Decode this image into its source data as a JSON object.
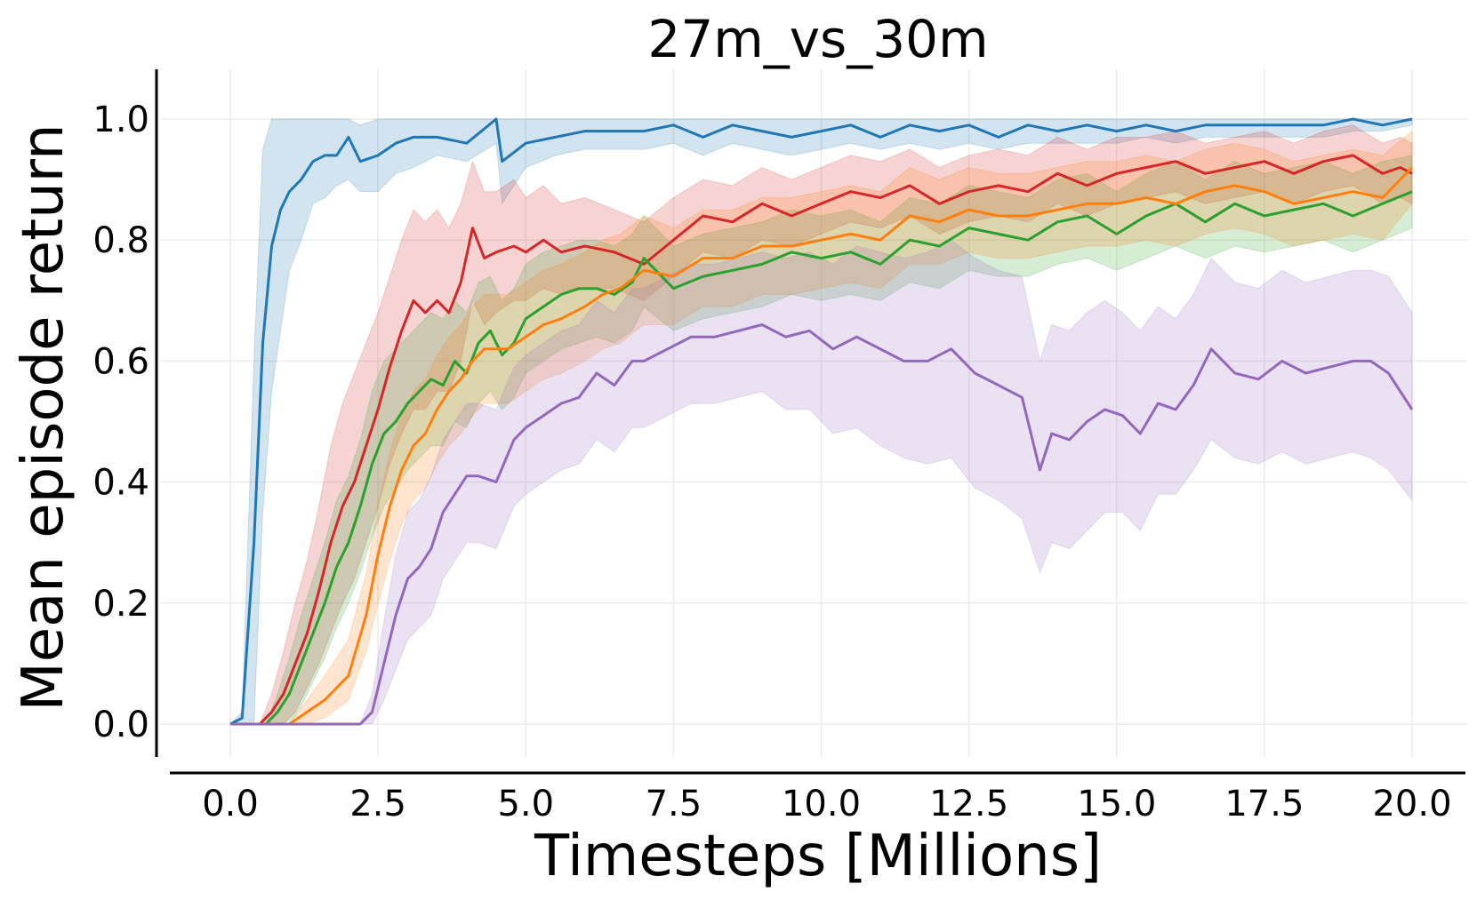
{
  "chart_data": {
    "type": "line",
    "title": "27m_vs_30m",
    "xlabel": "Timesteps [Millions]",
    "ylabel": "Mean episode return",
    "xlim": [
      -1.0,
      20.9
    ],
    "ylim": [
      -0.06,
      1.08
    ],
    "xticks": [
      0.0,
      2.5,
      5.0,
      7.5,
      10.0,
      12.5,
      15.0,
      17.5,
      20.0
    ],
    "xtick_labels": [
      "0.0",
      "2.5",
      "5.0",
      "7.5",
      "10.0",
      "12.5",
      "15.0",
      "17.5",
      "20.0"
    ],
    "yticks": [
      0.0,
      0.2,
      0.4,
      0.6,
      0.8,
      1.0
    ],
    "ytick_labels": [
      "0.0",
      "0.2",
      "0.4",
      "0.6",
      "0.8",
      "1.0"
    ],
    "grid": true,
    "legend": "none",
    "series": [
      {
        "color": "#1f77b4",
        "x": [
          0.0,
          0.2,
          0.4,
          0.55,
          0.7,
          0.85,
          1.0,
          1.2,
          1.4,
          1.6,
          1.8,
          2.0,
          2.2,
          2.5,
          2.8,
          3.1,
          3.5,
          4.0,
          4.5,
          4.6,
          5.0,
          5.5,
          6.0,
          6.5,
          7.0,
          7.5,
          8.0,
          8.5,
          9.0,
          9.5,
          10.0,
          10.5,
          11.0,
          11.5,
          12.0,
          12.5,
          13.0,
          13.5,
          14.0,
          14.5,
          15.0,
          15.5,
          16.0,
          16.5,
          17.0,
          17.5,
          18.0,
          18.5,
          19.0,
          19.5,
          20.0
        ],
        "mean": [
          0.0,
          0.01,
          0.3,
          0.63,
          0.79,
          0.85,
          0.88,
          0.9,
          0.93,
          0.94,
          0.94,
          0.97,
          0.93,
          0.94,
          0.96,
          0.97,
          0.97,
          0.96,
          1.0,
          0.93,
          0.96,
          0.97,
          0.98,
          0.98,
          0.98,
          0.99,
          0.97,
          0.99,
          0.98,
          0.97,
          0.98,
          0.99,
          0.97,
          0.99,
          0.98,
          0.99,
          0.97,
          0.99,
          0.98,
          0.99,
          0.98,
          0.99,
          0.98,
          0.99,
          0.99,
          0.99,
          0.99,
          0.99,
          1.0,
          0.99,
          1.0
        ],
        "lower": [
          0.0,
          0.0,
          0.0,
          0.35,
          0.55,
          0.65,
          0.75,
          0.8,
          0.86,
          0.87,
          0.89,
          0.9,
          0.88,
          0.88,
          0.91,
          0.92,
          0.94,
          0.93,
          0.96,
          0.86,
          0.92,
          0.94,
          0.95,
          0.95,
          0.95,
          0.96,
          0.94,
          0.96,
          0.95,
          0.94,
          0.95,
          0.96,
          0.95,
          0.96,
          0.95,
          0.96,
          0.95,
          0.96,
          0.96,
          0.96,
          0.96,
          0.97,
          0.96,
          0.97,
          0.97,
          0.97,
          0.97,
          0.97,
          0.98,
          0.98,
          0.99
        ],
        "upper": [
          0.0,
          0.02,
          0.6,
          0.95,
          1.0,
          1.0,
          1.0,
          1.0,
          1.0,
          1.0,
          1.0,
          1.0,
          0.99,
          1.0,
          1.0,
          1.0,
          1.0,
          1.0,
          1.0,
          1.0,
          1.0,
          1.0,
          1.0,
          1.0,
          1.0,
          1.0,
          1.0,
          1.0,
          1.0,
          1.0,
          1.0,
          1.0,
          1.0,
          1.0,
          1.0,
          1.0,
          1.0,
          1.0,
          1.0,
          1.0,
          1.0,
          1.0,
          1.0,
          1.0,
          1.0,
          1.0,
          1.0,
          1.0,
          1.0,
          1.0,
          1.0
        ]
      },
      {
        "color": "#d62728",
        "x": [
          0.0,
          0.5,
          0.7,
          0.9,
          1.1,
          1.3,
          1.5,
          1.7,
          1.9,
          2.1,
          2.3,
          2.5,
          2.7,
          2.9,
          3.1,
          3.3,
          3.5,
          3.7,
          3.9,
          4.1,
          4.3,
          4.5,
          4.8,
          5.0,
          5.3,
          5.6,
          6.0,
          6.5,
          7.0,
          7.5,
          8.0,
          8.5,
          9.0,
          9.5,
          10.0,
          10.5,
          11.0,
          11.5,
          12.0,
          12.5,
          13.0,
          13.5,
          14.0,
          14.5,
          15.0,
          15.5,
          16.0,
          16.5,
          17.0,
          17.5,
          18.0,
          18.5,
          19.0,
          19.5,
          19.8,
          20.0
        ],
        "mean": [
          0.0,
          0.0,
          0.02,
          0.05,
          0.1,
          0.15,
          0.22,
          0.3,
          0.36,
          0.4,
          0.46,
          0.52,
          0.59,
          0.65,
          0.7,
          0.68,
          0.7,
          0.68,
          0.73,
          0.82,
          0.77,
          0.78,
          0.79,
          0.78,
          0.8,
          0.78,
          0.79,
          0.78,
          0.76,
          0.8,
          0.84,
          0.83,
          0.86,
          0.84,
          0.86,
          0.88,
          0.87,
          0.89,
          0.86,
          0.88,
          0.89,
          0.88,
          0.91,
          0.89,
          0.91,
          0.92,
          0.93,
          0.91,
          0.92,
          0.93,
          0.91,
          0.93,
          0.94,
          0.91,
          0.92,
          0.91
        ],
        "lower": [
          0.0,
          0.0,
          0.0,
          0.0,
          0.02,
          0.06,
          0.1,
          0.15,
          0.2,
          0.24,
          0.3,
          0.36,
          0.43,
          0.48,
          0.52,
          0.52,
          0.55,
          0.55,
          0.6,
          0.7,
          0.66,
          0.68,
          0.7,
          0.7,
          0.72,
          0.71,
          0.72,
          0.72,
          0.7,
          0.74,
          0.78,
          0.77,
          0.8,
          0.79,
          0.81,
          0.83,
          0.82,
          0.84,
          0.81,
          0.83,
          0.84,
          0.83,
          0.86,
          0.84,
          0.86,
          0.87,
          0.88,
          0.86,
          0.87,
          0.88,
          0.86,
          0.88,
          0.89,
          0.86,
          0.87,
          0.86
        ],
        "upper": [
          0.0,
          0.0,
          0.05,
          0.12,
          0.2,
          0.27,
          0.36,
          0.46,
          0.53,
          0.58,
          0.63,
          0.68,
          0.74,
          0.8,
          0.85,
          0.83,
          0.85,
          0.82,
          0.86,
          0.93,
          0.88,
          0.88,
          0.9,
          0.87,
          0.89,
          0.86,
          0.87,
          0.85,
          0.83,
          0.87,
          0.9,
          0.89,
          0.92,
          0.9,
          0.92,
          0.94,
          0.93,
          0.95,
          0.92,
          0.94,
          0.95,
          0.94,
          0.97,
          0.95,
          0.97,
          0.97,
          0.98,
          0.96,
          0.97,
          0.98,
          0.96,
          0.98,
          0.99,
          0.96,
          0.97,
          0.96
        ]
      },
      {
        "color": "#2ca02c",
        "x": [
          0.0,
          0.6,
          0.8,
          1.0,
          1.2,
          1.4,
          1.6,
          1.8,
          2.0,
          2.2,
          2.4,
          2.6,
          2.8,
          3.0,
          3.2,
          3.4,
          3.6,
          3.8,
          4.0,
          4.2,
          4.4,
          4.6,
          4.8,
          5.0,
          5.3,
          5.6,
          5.9,
          6.2,
          6.5,
          6.8,
          7.0,
          7.5,
          8.0,
          8.5,
          9.0,
          9.5,
          10.0,
          10.5,
          11.0,
          11.5,
          12.0,
          12.5,
          13.0,
          13.5,
          14.0,
          14.5,
          15.0,
          15.5,
          16.0,
          16.5,
          17.0,
          17.5,
          18.0,
          18.5,
          19.0,
          19.5,
          20.0
        ],
        "mean": [
          0.0,
          0.0,
          0.02,
          0.05,
          0.1,
          0.15,
          0.2,
          0.26,
          0.3,
          0.36,
          0.43,
          0.48,
          0.5,
          0.53,
          0.55,
          0.57,
          0.56,
          0.6,
          0.58,
          0.63,
          0.65,
          0.61,
          0.63,
          0.67,
          0.69,
          0.71,
          0.72,
          0.72,
          0.71,
          0.73,
          0.77,
          0.72,
          0.74,
          0.75,
          0.76,
          0.78,
          0.77,
          0.78,
          0.76,
          0.8,
          0.79,
          0.82,
          0.81,
          0.8,
          0.83,
          0.84,
          0.81,
          0.84,
          0.86,
          0.83,
          0.86,
          0.84,
          0.85,
          0.86,
          0.84,
          0.86,
          0.88
        ],
        "lower": [
          0.0,
          0.0,
          0.0,
          0.0,
          0.03,
          0.07,
          0.11,
          0.16,
          0.2,
          0.25,
          0.31,
          0.36,
          0.39,
          0.42,
          0.44,
          0.46,
          0.46,
          0.5,
          0.49,
          0.53,
          0.55,
          0.52,
          0.54,
          0.58,
          0.6,
          0.62,
          0.63,
          0.64,
          0.63,
          0.65,
          0.69,
          0.65,
          0.67,
          0.68,
          0.69,
          0.71,
          0.7,
          0.71,
          0.7,
          0.73,
          0.72,
          0.75,
          0.74,
          0.74,
          0.76,
          0.77,
          0.75,
          0.77,
          0.79,
          0.77,
          0.79,
          0.78,
          0.79,
          0.8,
          0.78,
          0.8,
          0.82
        ],
        "upper": [
          0.0,
          0.0,
          0.05,
          0.11,
          0.18,
          0.24,
          0.3,
          0.37,
          0.41,
          0.47,
          0.55,
          0.6,
          0.62,
          0.64,
          0.66,
          0.68,
          0.67,
          0.7,
          0.68,
          0.73,
          0.74,
          0.7,
          0.72,
          0.76,
          0.78,
          0.79,
          0.8,
          0.8,
          0.79,
          0.81,
          0.84,
          0.79,
          0.81,
          0.82,
          0.83,
          0.85,
          0.84,
          0.85,
          0.83,
          0.87,
          0.86,
          0.89,
          0.88,
          0.87,
          0.9,
          0.91,
          0.88,
          0.91,
          0.93,
          0.9,
          0.93,
          0.91,
          0.92,
          0.93,
          0.91,
          0.93,
          0.94
        ]
      },
      {
        "color": "#ff7f0e",
        "x": [
          0.0,
          1.0,
          1.3,
          1.6,
          2.0,
          2.3,
          2.5,
          2.7,
          2.9,
          3.1,
          3.3,
          3.5,
          3.7,
          3.9,
          4.1,
          4.3,
          4.5,
          4.7,
          5.0,
          5.3,
          5.6,
          6.0,
          6.3,
          6.6,
          7.0,
          7.5,
          8.0,
          8.5,
          9.0,
          9.5,
          10.0,
          10.5,
          11.0,
          11.5,
          12.0,
          12.5,
          13.0,
          13.5,
          14.0,
          14.5,
          15.0,
          15.5,
          16.0,
          16.5,
          17.0,
          17.5,
          18.0,
          18.5,
          19.0,
          19.5,
          20.0
        ],
        "mean": [
          0.0,
          0.0,
          0.02,
          0.04,
          0.08,
          0.18,
          0.28,
          0.36,
          0.42,
          0.46,
          0.48,
          0.52,
          0.55,
          0.57,
          0.6,
          0.62,
          0.62,
          0.62,
          0.64,
          0.66,
          0.67,
          0.69,
          0.71,
          0.72,
          0.75,
          0.74,
          0.77,
          0.77,
          0.79,
          0.79,
          0.8,
          0.81,
          0.8,
          0.84,
          0.83,
          0.85,
          0.84,
          0.84,
          0.85,
          0.86,
          0.86,
          0.87,
          0.86,
          0.88,
          0.89,
          0.88,
          0.86,
          0.87,
          0.88,
          0.87,
          0.92
        ],
        "lower": [
          0.0,
          0.0,
          0.0,
          0.01,
          0.04,
          0.12,
          0.2,
          0.27,
          0.33,
          0.37,
          0.39,
          0.43,
          0.46,
          0.48,
          0.51,
          0.53,
          0.53,
          0.53,
          0.55,
          0.57,
          0.58,
          0.6,
          0.62,
          0.63,
          0.66,
          0.66,
          0.69,
          0.69,
          0.71,
          0.71,
          0.72,
          0.73,
          0.72,
          0.76,
          0.76,
          0.78,
          0.77,
          0.77,
          0.78,
          0.79,
          0.79,
          0.8,
          0.79,
          0.81,
          0.82,
          0.81,
          0.79,
          0.8,
          0.81,
          0.8,
          0.86
        ],
        "upper": [
          0.0,
          0.0,
          0.04,
          0.08,
          0.14,
          0.25,
          0.36,
          0.45,
          0.51,
          0.55,
          0.57,
          0.61,
          0.64,
          0.66,
          0.69,
          0.71,
          0.71,
          0.71,
          0.73,
          0.75,
          0.76,
          0.78,
          0.8,
          0.81,
          0.84,
          0.82,
          0.85,
          0.85,
          0.87,
          0.87,
          0.88,
          0.89,
          0.88,
          0.92,
          0.9,
          0.92,
          0.91,
          0.91,
          0.92,
          0.93,
          0.93,
          0.94,
          0.93,
          0.95,
          0.96,
          0.95,
          0.93,
          0.94,
          0.95,
          0.94,
          0.98
        ]
      },
      {
        "color": "#9467bd",
        "x": [
          0.0,
          2.2,
          2.4,
          2.6,
          2.8,
          3.0,
          3.2,
          3.4,
          3.6,
          3.8,
          4.0,
          4.2,
          4.5,
          4.8,
          5.0,
          5.3,
          5.6,
          5.9,
          6.2,
          6.5,
          6.8,
          7.0,
          7.4,
          7.8,
          8.2,
          8.6,
          9.0,
          9.4,
          9.8,
          10.2,
          10.6,
          11.0,
          11.4,
          11.8,
          12.2,
          12.6,
          13.0,
          13.4,
          13.7,
          13.9,
          14.2,
          14.5,
          14.8,
          15.1,
          15.4,
          15.7,
          16.0,
          16.3,
          16.6,
          17.0,
          17.4,
          17.8,
          18.2,
          18.6,
          19.0,
          19.3,
          19.6,
          20.0
        ],
        "mean": [
          0.0,
          0.0,
          0.02,
          0.1,
          0.18,
          0.24,
          0.26,
          0.29,
          0.35,
          0.38,
          0.41,
          0.41,
          0.4,
          0.47,
          0.49,
          0.51,
          0.53,
          0.54,
          0.58,
          0.56,
          0.6,
          0.6,
          0.62,
          0.64,
          0.64,
          0.65,
          0.66,
          0.64,
          0.65,
          0.62,
          0.64,
          0.62,
          0.6,
          0.6,
          0.62,
          0.58,
          0.56,
          0.54,
          0.42,
          0.48,
          0.47,
          0.5,
          0.52,
          0.51,
          0.48,
          0.53,
          0.52,
          0.56,
          0.62,
          0.58,
          0.57,
          0.6,
          0.58,
          0.59,
          0.6,
          0.6,
          0.58,
          0.52
        ],
        "lower": [
          0.0,
          0.0,
          0.0,
          0.04,
          0.09,
          0.14,
          0.16,
          0.18,
          0.24,
          0.27,
          0.3,
          0.3,
          0.29,
          0.36,
          0.38,
          0.4,
          0.42,
          0.43,
          0.47,
          0.45,
          0.49,
          0.49,
          0.51,
          0.53,
          0.53,
          0.54,
          0.55,
          0.52,
          0.52,
          0.48,
          0.49,
          0.46,
          0.44,
          0.43,
          0.44,
          0.39,
          0.37,
          0.34,
          0.25,
          0.3,
          0.29,
          0.32,
          0.35,
          0.35,
          0.32,
          0.38,
          0.38,
          0.42,
          0.47,
          0.44,
          0.43,
          0.45,
          0.43,
          0.44,
          0.45,
          0.44,
          0.42,
          0.37
        ],
        "upper": [
          0.0,
          0.0,
          0.05,
          0.17,
          0.28,
          0.35,
          0.37,
          0.41,
          0.47,
          0.5,
          0.53,
          0.53,
          0.52,
          0.59,
          0.61,
          0.63,
          0.65,
          0.66,
          0.7,
          0.68,
          0.72,
          0.72,
          0.74,
          0.76,
          0.76,
          0.77,
          0.78,
          0.77,
          0.78,
          0.76,
          0.79,
          0.78,
          0.77,
          0.78,
          0.8,
          0.77,
          0.75,
          0.74,
          0.6,
          0.66,
          0.65,
          0.68,
          0.7,
          0.68,
          0.65,
          0.69,
          0.67,
          0.71,
          0.77,
          0.73,
          0.72,
          0.75,
          0.73,
          0.74,
          0.75,
          0.75,
          0.74,
          0.68
        ]
      }
    ]
  }
}
